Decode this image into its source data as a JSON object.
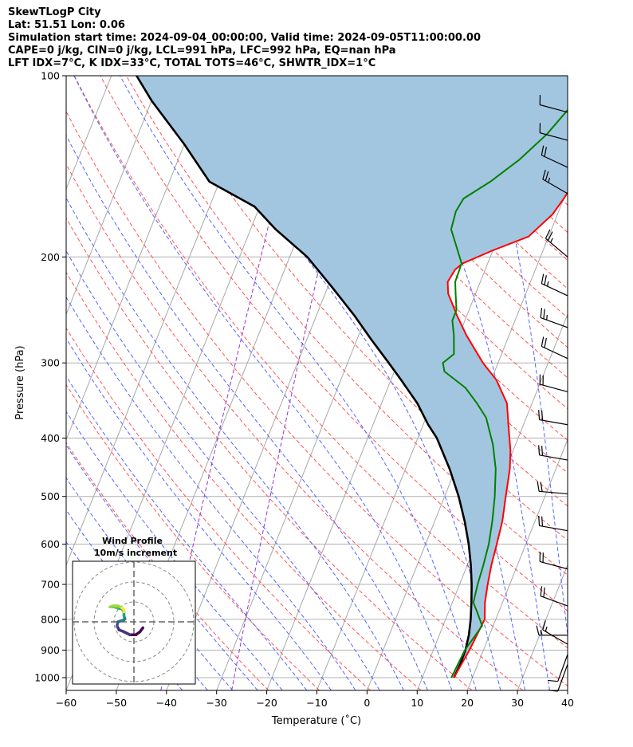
{
  "header": {
    "line1": "SkewTLogP City",
    "line2": "Lat: 51.51   Lon: 0.06",
    "line3": "Simulation start time: 2024-09-04_00:00:00, Valid time: 2024-09-05T11:00:00.00",
    "line4": "CAPE=0 j/kg, CIN=0 j/kg, LCL=991 hPa, LFC=992 hPa, EQ=nan hPa",
    "line5": "LFT IDX=7°C, K IDX=33°C, TOTAL TOTS=46°C, SHWTR_IDX=1°C"
  },
  "chart_data": {
    "type": "line",
    "subtype": "skew-T log-P diagram",
    "xlabel": "Temperature (˚C)",
    "ylabel": "Pressure (hPa)",
    "xlim": [
      -60,
      40
    ],
    "ylim": [
      1050,
      100
    ],
    "y_scale": "log",
    "grid": true,
    "x_ticks": [
      -60,
      -50,
      -40,
      -30,
      -20,
      -10,
      0,
      10,
      20,
      30,
      40
    ],
    "y_ticks": [
      100,
      200,
      300,
      400,
      500,
      600,
      700,
      800,
      900,
      1000
    ],
    "series": [
      {
        "role": "temperature",
        "color": "#ff0000",
        "points": [
          [
            16.3,
            1000
          ],
          [
            17.2,
            900
          ],
          [
            17.8,
            800
          ],
          [
            16.5,
            750
          ],
          [
            15.6,
            700
          ],
          [
            14.8,
            650
          ],
          [
            14.2,
            600
          ],
          [
            13.5,
            550
          ],
          [
            12.2,
            500
          ],
          [
            10.8,
            450
          ],
          [
            9.5,
            420
          ],
          [
            7,
            380
          ],
          [
            5,
            350
          ],
          [
            1,
            320
          ],
          [
            -3,
            300
          ],
          [
            -8.5,
            270
          ],
          [
            -12,
            250
          ],
          [
            -15.5,
            230
          ],
          [
            -16.5,
            220
          ],
          [
            -16,
            210
          ],
          [
            -15,
            205
          ],
          [
            -10,
            195
          ],
          [
            -4,
            185
          ],
          [
            -1,
            170
          ],
          [
            0,
            160
          ],
          [
            1,
            148
          ],
          [
            1.5,
            138
          ],
          [
            2,
            130
          ],
          [
            3,
            120
          ],
          [
            4,
            112
          ],
          [
            5,
            106
          ],
          [
            6,
            100
          ]
        ]
      },
      {
        "role": "dewpoint",
        "color": "#008000",
        "points": [
          [
            15.8,
            1000
          ],
          [
            16.3,
            900
          ],
          [
            17.8,
            820
          ],
          [
            15.8,
            780
          ],
          [
            14.2,
            750
          ],
          [
            13.6,
            700
          ],
          [
            13.2,
            650
          ],
          [
            12.6,
            600
          ],
          [
            11.5,
            550
          ],
          [
            10,
            500
          ],
          [
            8,
            450
          ],
          [
            5.5,
            410
          ],
          [
            2,
            370
          ],
          [
            -1,
            350
          ],
          [
            -4.5,
            330
          ],
          [
            -10,
            310
          ],
          [
            -11,
            300
          ],
          [
            -9.5,
            290
          ],
          [
            -11,
            270
          ],
          [
            -12.5,
            255
          ],
          [
            -12.5,
            245
          ],
          [
            -14,
            230
          ],
          [
            -15,
            220
          ],
          [
            -15.2,
            205
          ],
          [
            -18,
            190
          ],
          [
            -20,
            180
          ],
          [
            -20.5,
            168
          ],
          [
            -20,
            160
          ],
          [
            -16,
            150
          ],
          [
            -12,
            138
          ],
          [
            -8.5,
            125
          ],
          [
            -6.5,
            115
          ],
          [
            -5,
            108
          ],
          [
            -4.5,
            100
          ]
        ]
      },
      {
        "role": "parcel",
        "color": "#000000",
        "points": [
          [
            16.3,
            1000
          ],
          [
            16.5,
            950
          ],
          [
            16.4,
            900
          ],
          [
            15.9,
            850
          ],
          [
            15,
            800
          ],
          [
            13.8,
            750
          ],
          [
            12.4,
            700
          ],
          [
            10.7,
            650
          ],
          [
            8.6,
            600
          ],
          [
            6,
            550
          ],
          [
            2.8,
            500
          ],
          [
            -1.2,
            450
          ],
          [
            -6.2,
            400
          ],
          [
            -9,
            380
          ],
          [
            -12.9,
            350
          ],
          [
            -18,
            320
          ],
          [
            -21.8,
            300
          ],
          [
            -27,
            275
          ],
          [
            -32.5,
            250
          ],
          [
            -39,
            225
          ],
          [
            -46.5,
            200
          ],
          [
            -55,
            180
          ],
          [
            -61,
            165
          ],
          [
            -72,
            150
          ],
          [
            -80,
            130
          ],
          [
            -90,
            110
          ],
          [
            -95,
            100
          ]
        ]
      }
    ],
    "shaded_region": "between temperature and parcel profile (blue)",
    "reference_lines": [
      "isotherms (grey)",
      "dry adiabats (red dashed)",
      "moist adiabats (blue dashed)",
      "mixing ratio lines (purple dashed)"
    ],
    "wind_barbs": [
      {
        "p": 115,
        "dir": 285,
        "kt": 10
      },
      {
        "p": 128,
        "dir": 285,
        "kt": 10
      },
      {
        "p": 142,
        "dir": 295,
        "kt": 20
      },
      {
        "p": 157,
        "dir": 300,
        "kt": 25
      },
      {
        "p": 200,
        "dir": 310,
        "kt": 25
      },
      {
        "p": 232,
        "dir": 295,
        "kt": 25
      },
      {
        "p": 262,
        "dir": 290,
        "kt": 25
      },
      {
        "p": 295,
        "dir": 295,
        "kt": 20
      },
      {
        "p": 335,
        "dir": 285,
        "kt": 20
      },
      {
        "p": 380,
        "dir": 280,
        "kt": 20
      },
      {
        "p": 435,
        "dir": 280,
        "kt": 20
      },
      {
        "p": 495,
        "dir": 275,
        "kt": 20
      },
      {
        "p": 570,
        "dir": 280,
        "kt": 20
      },
      {
        "p": 660,
        "dir": 285,
        "kt": 20
      },
      {
        "p": 760,
        "dir": 290,
        "kt": 20
      },
      {
        "p": 850,
        "dir": 270,
        "kt": 15
      },
      {
        "p": 880,
        "dir": 300,
        "kt": 15
      },
      {
        "p": 915,
        "dir": 200,
        "kt": 10
      },
      {
        "p": 950,
        "dir": 200,
        "kt": 10
      }
    ],
    "inset": {
      "title_line1": "Wind Profile",
      "title_line2": "10m/s increment",
      "hodograph_uv": [
        [
          4.5,
          -3
        ],
        [
          3,
          -5
        ],
        [
          1,
          -6.5
        ],
        [
          -2,
          -6.5
        ],
        [
          -5,
          -5
        ],
        [
          -7.5,
          -4
        ],
        [
          -8.5,
          -2
        ],
        [
          -8,
          0
        ],
        [
          -6.5,
          0.5
        ],
        [
          -5,
          1
        ],
        [
          -4.5,
          1.5
        ],
        [
          -5,
          3
        ],
        [
          -5,
          5
        ],
        [
          -6,
          6.5
        ],
        [
          -8.5,
          7
        ],
        [
          -10,
          7.5
        ],
        [
          -12,
          7.5
        ],
        [
          -10.5,
          8
        ],
        [
          -8,
          8
        ],
        [
          -6,
          7
        ],
        [
          -5,
          6
        ],
        [
          -5,
          5
        ]
      ]
    }
  }
}
